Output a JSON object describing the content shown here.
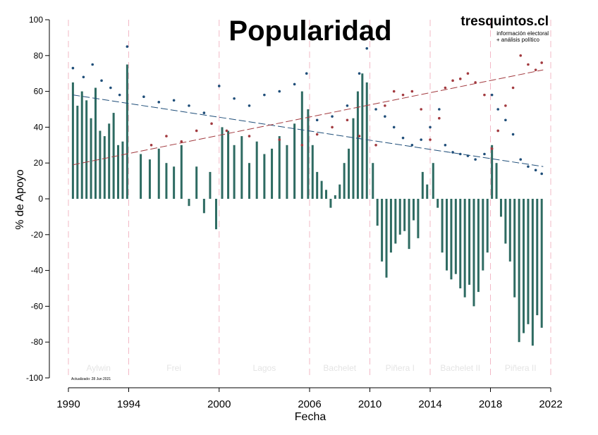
{
  "chart_data": {
    "type": "bar",
    "title": "Popularidad",
    "brand": "tresquintos.cl",
    "brand_tagline": [
      "información electoral",
      "+ análisis político"
    ],
    "updated_note": "Actualizado: 28 Jun 2021",
    "xlabel": "Fecha",
    "ylabel": "% de Apoyo",
    "xlim": [
      1990,
      2022
    ],
    "ylim": [
      -100,
      100
    ],
    "x_ticks": [
      1990,
      1994,
      2000,
      2006,
      2010,
      2014,
      2018,
      2022
    ],
    "y_ticks": [
      100,
      80,
      60,
      40,
      20,
      0,
      -20,
      -40,
      -60,
      -80,
      -100
    ],
    "grid": false,
    "colors": {
      "net_bars": "#2e6b62",
      "approval": "#1f4e79",
      "disapproval": "#a23a3f",
      "term_divider": "#f2b8c6"
    },
    "terms": [
      {
        "name": "Aylwin",
        "start": 1990.0,
        "end": 1994.0
      },
      {
        "name": "Frei",
        "start": 1994.0,
        "end": 2000.0
      },
      {
        "name": "Lagos",
        "start": 2000.0,
        "end": 2006.0
      },
      {
        "name": "Bachelet",
        "start": 2006.0,
        "end": 2010.0
      },
      {
        "name": "Piñera I",
        "start": 2010.0,
        "end": 2014.0
      },
      {
        "name": "Bachelet II",
        "start": 2014.0,
        "end": 2018.0
      },
      {
        "name": "Piñera II",
        "start": 2018.0,
        "end": 2022.0
      }
    ],
    "trend_lines": [
      {
        "series": "approval",
        "x": [
          1990.3,
          2021.5
        ],
        "y": [
          58,
          18
        ]
      },
      {
        "series": "disapproval",
        "x": [
          1990.3,
          2021.5
        ],
        "y": [
          19,
          72
        ]
      }
    ],
    "net_approval_samples": {
      "x": [
        1990.3,
        1990.6,
        1990.9,
        1991.2,
        1991.5,
        1991.8,
        1992.1,
        1992.4,
        1992.7,
        1993.0,
        1993.3,
        1993.6,
        1993.9,
        1994.8,
        1995.4,
        1996.0,
        1996.5,
        1997.0,
        1997.5,
        1998.0,
        1998.5,
        1999.0,
        1999.4,
        1999.8,
        2000.2,
        2000.6,
        2001.0,
        2001.5,
        2002.0,
        2002.5,
        2003.0,
        2003.5,
        2004.0,
        2004.5,
        2005.0,
        2005.5,
        2005.9,
        2006.2,
        2006.5,
        2006.8,
        2007.1,
        2007.4,
        2007.7,
        2008.0,
        2008.3,
        2008.6,
        2008.9,
        2009.2,
        2009.5,
        2009.8,
        2010.2,
        2010.5,
        2010.8,
        2011.1,
        2011.4,
        2011.7,
        2012.0,
        2012.3,
        2012.6,
        2012.9,
        2013.2,
        2013.5,
        2013.8,
        2014.2,
        2014.5,
        2014.8,
        2015.1,
        2015.4,
        2015.7,
        2016.0,
        2016.3,
        2016.6,
        2016.9,
        2017.2,
        2017.5,
        2017.8,
        2018.1,
        2018.4,
        2018.7,
        2019.0,
        2019.3,
        2019.6,
        2019.9,
        2020.2,
        2020.5,
        2020.8,
        2021.1,
        2021.4
      ],
      "values": [
        65,
        52,
        60,
        55,
        45,
        62,
        38,
        35,
        42,
        48,
        30,
        32,
        75,
        25,
        22,
        28,
        20,
        18,
        30,
        -4,
        18,
        -8,
        15,
        -17,
        40,
        38,
        30,
        35,
        20,
        32,
        25,
        28,
        35,
        30,
        42,
        60,
        50,
        30,
        15,
        10,
        5,
        -5,
        2,
        8,
        20,
        28,
        45,
        60,
        70,
        65,
        20,
        -15,
        -35,
        -44,
        -30,
        -25,
        -20,
        -18,
        -28,
        -12,
        -22,
        15,
        8,
        20,
        -5,
        -30,
        -40,
        -45,
        -42,
        -50,
        -55,
        -48,
        -60,
        -52,
        -40,
        -30,
        30,
        20,
        -10,
        -25,
        -35,
        -55,
        -80,
        -75,
        -70,
        -82,
        -65,
        -72
      ]
    },
    "approval_samples": {
      "x": [
        1990.3,
        1991.0,
        1991.6,
        1992.2,
        1992.8,
        1993.4,
        1993.9,
        1995.0,
        1996.0,
        1997.0,
        1998.0,
        1999.0,
        2000.0,
        2001.0,
        2002.0,
        2003.0,
        2004.0,
        2005.0,
        2005.8,
        2006.5,
        2007.5,
        2008.5,
        2009.3,
        2009.8,
        2010.4,
        2011.0,
        2011.6,
        2012.2,
        2012.8,
        2013.4,
        2014.0,
        2014.6,
        2015.0,
        2015.5,
        2016.0,
        2016.5,
        2017.0,
        2017.6,
        2018.1,
        2018.5,
        2019.0,
        2019.5,
        2020.0,
        2020.5,
        2021.0,
        2021.4
      ],
      "values": [
        73,
        68,
        75,
        66,
        62,
        58,
        85,
        57,
        54,
        55,
        52,
        48,
        63,
        56,
        52,
        58,
        60,
        64,
        70,
        44,
        46,
        52,
        70,
        84,
        50,
        46,
        40,
        34,
        30,
        33,
        40,
        50,
        30,
        26,
        25,
        24,
        22,
        25,
        58,
        50,
        44,
        36,
        22,
        18,
        16,
        14
      ]
    },
    "disapproval_samples": {
      "x": [
        1995.5,
        1996.5,
        1997.5,
        1998.5,
        1999.5,
        2000.5,
        2002.0,
        2004.0,
        2005.5,
        2006.5,
        2007.5,
        2008.5,
        2009.3,
        2010.4,
        2011.0,
        2011.6,
        2012.2,
        2012.8,
        2013.4,
        2014.0,
        2014.6,
        2015.0,
        2015.5,
        2016.0,
        2016.5,
        2017.0,
        2017.6,
        2018.1,
        2018.5,
        2019.0,
        2019.5,
        2020.0,
        2020.5,
        2021.0,
        2021.4
      ],
      "values": [
        30,
        35,
        32,
        38,
        42,
        38,
        35,
        33,
        30,
        36,
        40,
        44,
        35,
        30,
        52,
        60,
        58,
        60,
        50,
        33,
        45,
        62,
        66,
        67,
        70,
        65,
        58,
        28,
        38,
        52,
        62,
        80,
        75,
        72,
        76
      ]
    }
  }
}
